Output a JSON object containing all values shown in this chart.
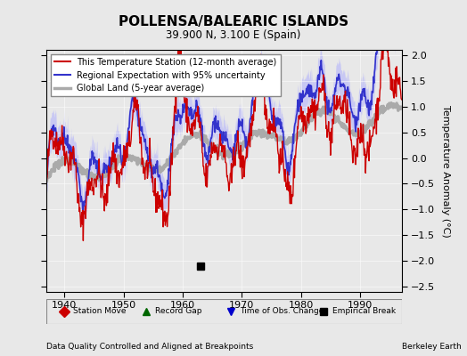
{
  "title": "POLLENSA/BALEARIC ISLANDS",
  "subtitle": "39.900 N, 3.100 E (Spain)",
  "ylabel": "Temperature Anomaly (°C)",
  "footnote_left": "Data Quality Controlled and Aligned at Breakpoints",
  "footnote_right": "Berkeley Earth",
  "xlim": [
    1937,
    1997
  ],
  "ylim": [
    -2.6,
    2.1
  ],
  "yticks": [
    -2.5,
    -2,
    -1.5,
    -1,
    -0.5,
    0,
    0.5,
    1,
    1.5,
    2
  ],
  "xticks": [
    1940,
    1950,
    1960,
    1970,
    1980,
    1990
  ],
  "bg_color": "#e8e8e8",
  "plot_bg_color": "#e8e8e8",
  "empirical_break_year": 1963,
  "empirical_break_value": -2.1,
  "legend_items": [
    {
      "label": "This Temperature Station (12-month average)",
      "color": "#cc0000",
      "lw": 1.5
    },
    {
      "label": "Regional Expectation with 95% uncertainty",
      "color": "#3333cc",
      "lw": 1.5
    },
    {
      "label": "Global Land (5-year average)",
      "color": "#aaaaaa",
      "lw": 2.5
    }
  ]
}
